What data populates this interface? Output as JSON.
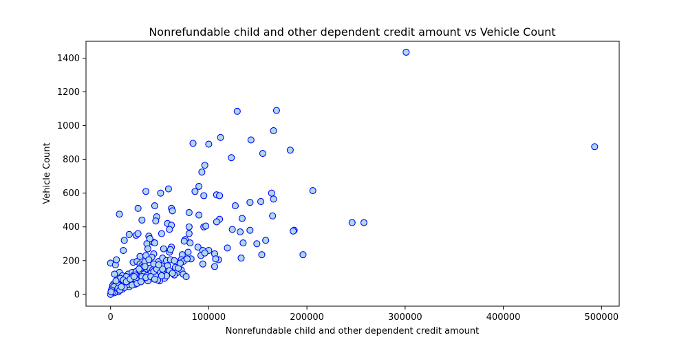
{
  "chart_data": {
    "type": "scatter",
    "title": "Nonrefundable child and other dependent credit amount vs Vehicle Count",
    "xlabel": "Nonrefundable child and other dependent credit amount",
    "ylabel": "Vehicle Count",
    "xlim": [
      -25000,
      518000
    ],
    "ylim": [
      -70,
      1500
    ],
    "xticks": [
      0,
      100000,
      200000,
      300000,
      400000,
      500000
    ],
    "xtick_labels": [
      "0",
      "100000",
      "200000",
      "300000",
      "400000",
      "500000"
    ],
    "yticks": [
      0,
      200,
      400,
      600,
      800,
      1000,
      1200,
      1400
    ],
    "ytick_labels": [
      "0",
      "200",
      "400",
      "600",
      "800",
      "1000",
      "1200",
      "1400"
    ],
    "grid": false,
    "marker_face_color": "#add8e6",
    "marker_edge_color": "#0000ff",
    "points": [
      [
        301000,
        1435
      ],
      [
        493000,
        875
      ],
      [
        129000,
        1085
      ],
      [
        169000,
        1090
      ],
      [
        166000,
        970
      ],
      [
        112000,
        930
      ],
      [
        143000,
        915
      ],
      [
        84000,
        895
      ],
      [
        100000,
        890
      ],
      [
        155000,
        835
      ],
      [
        183000,
        855
      ],
      [
        123000,
        810
      ],
      [
        96000,
        765
      ],
      [
        93000,
        725
      ],
      [
        90000,
        640
      ],
      [
        86000,
        610
      ],
      [
        36000,
        610
      ],
      [
        51000,
        600
      ],
      [
        59000,
        625
      ],
      [
        206000,
        615
      ],
      [
        164000,
        600
      ],
      [
        108000,
        590
      ],
      [
        111000,
        585
      ],
      [
        95000,
        585
      ],
      [
        166000,
        565
      ],
      [
        142000,
        545
      ],
      [
        153000,
        550
      ],
      [
        127000,
        525
      ],
      [
        45000,
        525
      ],
      [
        28000,
        510
      ],
      [
        62000,
        510
      ],
      [
        63000,
        495
      ],
      [
        9000,
        475
      ],
      [
        80000,
        485
      ],
      [
        90000,
        470
      ],
      [
        165000,
        465
      ],
      [
        47000,
        460
      ],
      [
        32000,
        440
      ],
      [
        111000,
        445
      ],
      [
        134000,
        450
      ],
      [
        108000,
        430
      ],
      [
        46000,
        435
      ],
      [
        58000,
        420
      ],
      [
        62000,
        410
      ],
      [
        246000,
        425
      ],
      [
        258000,
        425
      ],
      [
        187000,
        380
      ],
      [
        186000,
        375
      ],
      [
        80000,
        400
      ],
      [
        95000,
        400
      ],
      [
        97000,
        405
      ],
      [
        124000,
        385
      ],
      [
        132000,
        370
      ],
      [
        142000,
        380
      ],
      [
        60000,
        385
      ],
      [
        19000,
        355
      ],
      [
        26000,
        350
      ],
      [
        28000,
        360
      ],
      [
        52000,
        360
      ],
      [
        39000,
        345
      ],
      [
        14000,
        320
      ],
      [
        80000,
        360
      ],
      [
        76000,
        325
      ],
      [
        75000,
        315
      ],
      [
        81000,
        305
      ],
      [
        135000,
        305
      ],
      [
        149000,
        300
      ],
      [
        158000,
        320
      ],
      [
        37000,
        300
      ],
      [
        43000,
        310
      ],
      [
        40000,
        330
      ],
      [
        45000,
        305
      ],
      [
        62000,
        280
      ],
      [
        54000,
        270
      ],
      [
        89000,
        280
      ],
      [
        94000,
        260
      ],
      [
        100000,
        260
      ],
      [
        119000,
        275
      ],
      [
        13000,
        260
      ],
      [
        38000,
        270
      ],
      [
        60000,
        250
      ],
      [
        61000,
        265
      ],
      [
        73000,
        235
      ],
      [
        79000,
        250
      ],
      [
        44000,
        240
      ],
      [
        82000,
        210
      ],
      [
        92000,
        230
      ],
      [
        96000,
        245
      ],
      [
        106000,
        240
      ],
      [
        110000,
        205
      ],
      [
        133000,
        215
      ],
      [
        154000,
        235
      ],
      [
        196000,
        235
      ],
      [
        0,
        185
      ],
      [
        5000,
        175
      ],
      [
        6000,
        205
      ],
      [
        23000,
        190
      ],
      [
        27000,
        195
      ],
      [
        30000,
        180
      ],
      [
        32000,
        170
      ],
      [
        35000,
        195
      ],
      [
        49000,
        195
      ],
      [
        53000,
        215
      ],
      [
        57000,
        200
      ],
      [
        61000,
        205
      ],
      [
        65000,
        200
      ],
      [
        72000,
        205
      ],
      [
        74000,
        195
      ],
      [
        78000,
        210
      ],
      [
        94000,
        180
      ],
      [
        106000,
        165
      ],
      [
        107000,
        210
      ],
      [
        30000,
        225
      ],
      [
        42000,
        220
      ],
      [
        36000,
        230
      ],
      [
        9000,
        130
      ],
      [
        12000,
        110
      ],
      [
        18000,
        120
      ],
      [
        22000,
        130
      ],
      [
        26000,
        135
      ],
      [
        31000,
        110
      ],
      [
        33000,
        125
      ],
      [
        36000,
        150
      ],
      [
        40000,
        155
      ],
      [
        43000,
        145
      ],
      [
        48000,
        165
      ],
      [
        52000,
        170
      ],
      [
        56000,
        150
      ],
      [
        58000,
        170
      ],
      [
        60000,
        140
      ],
      [
        66000,
        160
      ],
      [
        68000,
        130
      ],
      [
        72000,
        145
      ],
      [
        74000,
        120
      ],
      [
        77000,
        105
      ],
      [
        65000,
        115
      ],
      [
        63000,
        125
      ],
      [
        55000,
        95
      ],
      [
        50000,
        80
      ],
      [
        46000,
        110
      ],
      [
        39000,
        90
      ],
      [
        34000,
        95
      ],
      [
        29000,
        80
      ],
      [
        25000,
        60
      ],
      [
        22000,
        100
      ],
      [
        17000,
        80
      ],
      [
        15000,
        55
      ],
      [
        10000,
        70
      ],
      [
        7000,
        90
      ],
      [
        5000,
        40
      ],
      [
        3000,
        60
      ],
      [
        2000,
        20
      ],
      [
        1000,
        10
      ],
      [
        500,
        5
      ],
      [
        0,
        0
      ],
      [
        4000,
        120
      ],
      [
        7000,
        60
      ],
      [
        11000,
        90
      ],
      [
        16000,
        105
      ],
      [
        21000,
        85
      ],
      [
        24000,
        70
      ],
      [
        27000,
        115
      ],
      [
        30000,
        140
      ],
      [
        33000,
        160
      ],
      [
        41000,
        125
      ],
      [
        44000,
        135
      ],
      [
        47000,
        150
      ],
      [
        51000,
        130
      ],
      [
        54000,
        120
      ],
      [
        57000,
        110
      ],
      [
        9000,
        40
      ],
      [
        13000,
        50
      ],
      [
        19000,
        45
      ],
      [
        23000,
        110
      ],
      [
        28000,
        100
      ],
      [
        34000,
        120
      ],
      [
        37000,
        110
      ],
      [
        42000,
        95
      ],
      [
        48000,
        85
      ],
      [
        53000,
        150
      ],
      [
        69000,
        155
      ],
      [
        71000,
        185
      ],
      [
        12000,
        30
      ],
      [
        6000,
        20
      ],
      [
        8000,
        15
      ],
      [
        3000,
        30
      ],
      [
        2000,
        50
      ],
      [
        1500,
        35
      ],
      [
        4000,
        10
      ],
      [
        6500,
        70
      ],
      [
        10000,
        95
      ],
      [
        14000,
        65
      ],
      [
        18000,
        60
      ],
      [
        20000,
        75
      ],
      [
        22000,
        55
      ],
      [
        26000,
        90
      ],
      [
        32000,
        105
      ],
      [
        38000,
        80
      ],
      [
        44000,
        180
      ],
      [
        49000,
        175
      ],
      [
        35000,
        165
      ],
      [
        39000,
        205
      ],
      [
        29000,
        150
      ],
      [
        25000,
        115
      ],
      [
        14000,
        40
      ],
      [
        8000,
        55
      ],
      [
        5500,
        80
      ],
      [
        3500,
        45
      ],
      [
        2500,
        15
      ],
      [
        1000,
        25
      ],
      [
        500,
        15
      ],
      [
        7500,
        35
      ],
      [
        9500,
        25
      ],
      [
        11000,
        45
      ],
      [
        13000,
        85
      ],
      [
        16000,
        75
      ],
      [
        20000,
        90
      ],
      [
        24000,
        105
      ],
      [
        27000,
        65
      ],
      [
        31000,
        75
      ],
      [
        36000,
        100
      ],
      [
        41000,
        105
      ],
      [
        45000,
        90
      ],
      [
        52000,
        110
      ]
    ]
  }
}
